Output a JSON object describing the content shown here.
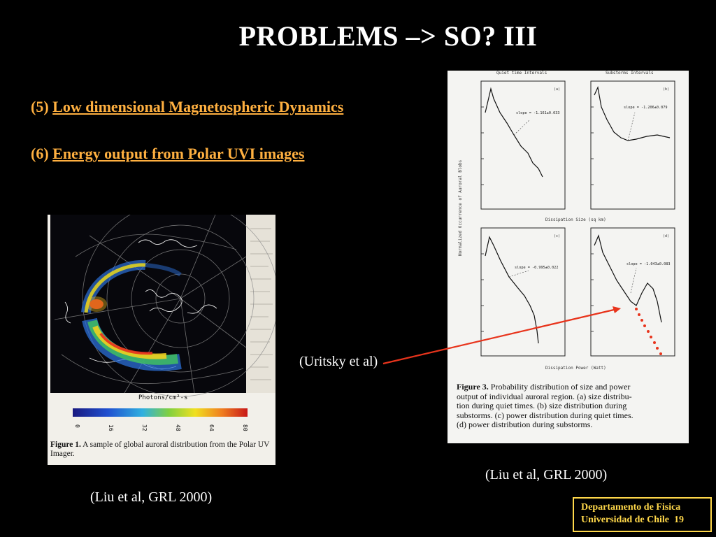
{
  "slide": {
    "title": "PROBLEMS –> SO?  III",
    "items": [
      {
        "number": "(5)",
        "text": "Low dimensional Magnetospheric Dynamics"
      },
      {
        "number": "(6)",
        "text": "Energy output from Polar UVI images"
      }
    ],
    "annotation": "(Uritsky et al)",
    "citation_left": "(Liu et al, GRL 2000)",
    "citation_right": "(Liu et al, GRL 2000)",
    "footer": {
      "line1": "Departamento de Fisica",
      "line2": "Universidad de Chile",
      "page": "19"
    },
    "colors": {
      "title": "#ffffff",
      "items": "#ffb040",
      "footer": "#ffd84a",
      "arrow": "#e8341c"
    }
  },
  "figure_left": {
    "colorbar_label": "Photons/cm²-s",
    "colorbar_ticks": [
      "0",
      "16",
      "32",
      "48",
      "64",
      "80"
    ],
    "caption_label": "Figure 1.",
    "caption_text": "A sample of global auroral distribution from the Polar UV Imager."
  },
  "figure_right": {
    "panel_titles": [
      "Quiet time Intervals",
      "Substorms Intervals"
    ],
    "panel_labels": [
      "(a)",
      "(b)",
      "(c)",
      "(d)"
    ],
    "y_axis_label": "Normalized Occurrence of Auroral Blobs",
    "x_label_top": "Dissipation Size (sq km)",
    "x_label_bottom": "Dissipation Power (Watt)",
    "slopes": [
      "slope = -1.161±0.033",
      "slope = -1.206±0.079",
      "slope = -0.995±0.022",
      "slope = -1.043±0.083"
    ],
    "caption_label": "Figure 3.",
    "caption_lines": [
      "Probability distribution of size and power",
      "output of individual auroral region.  (a) size distribu-",
      "tion during quiet times.  (b) size distribution during",
      "substorms.  (c) power distribution during quiet times.",
      "(d) power distribution during substorms."
    ]
  }
}
